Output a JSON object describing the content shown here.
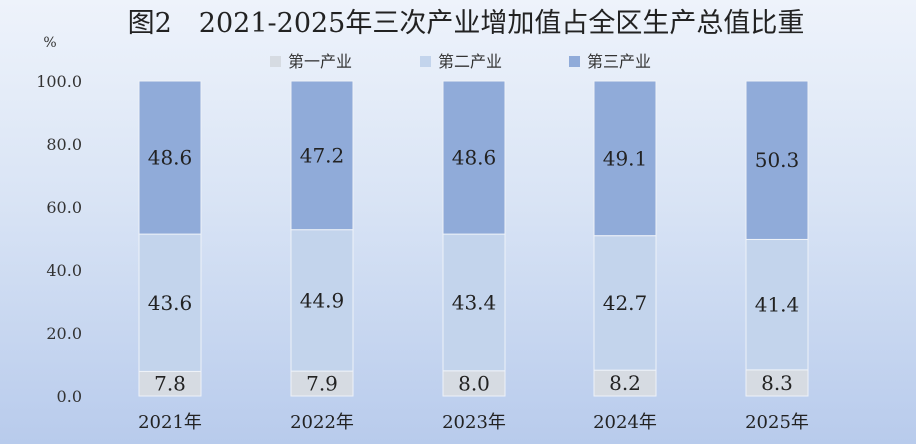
{
  "chart_data": {
    "type": "bar",
    "stacked": true,
    "title": "图2　2021-2025年三次产业增加值占全区生产总值比重",
    "unit": "%",
    "categories": [
      "2021年",
      "2022年",
      "2023年",
      "2024年",
      "2025年"
    ],
    "series": [
      {
        "name": "第一产业",
        "values": [
          7.8,
          7.9,
          8.0,
          8.2,
          8.3
        ],
        "color": "#d6dbe2"
      },
      {
        "name": "第二产业",
        "values": [
          43.6,
          44.9,
          43.4,
          42.7,
          41.4
        ],
        "color": "#c3d4ec"
      },
      {
        "name": "第三产业",
        "values": [
          48.6,
          47.2,
          48.6,
          49.1,
          50.3
        ],
        "color": "#90abd9"
      }
    ],
    "y_ticks": [
      "0.0",
      "20.0",
      "40.0",
      "60.0",
      "80.0",
      "100.0"
    ],
    "ylim": [
      0,
      100
    ],
    "grid": false,
    "legend_position": "top"
  }
}
